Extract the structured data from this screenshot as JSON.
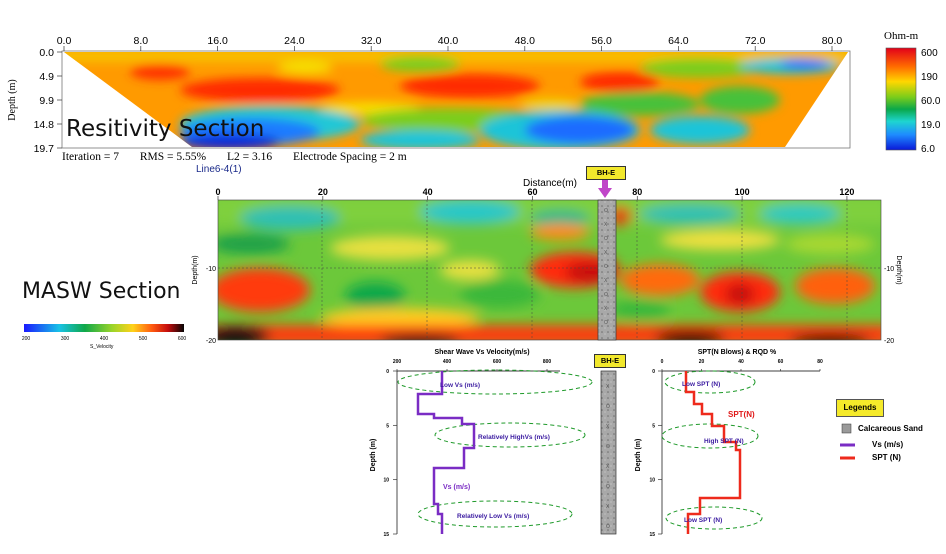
{
  "resistivity": {
    "section_label": "Resitivity Section",
    "x_ticks": [
      "0.0",
      "8.0",
      "16.0",
      "24.0",
      "32.0",
      "40.0",
      "48.0",
      "56.0",
      "64.0",
      "72.0",
      "80.0"
    ],
    "y_ticks": [
      "0.0",
      "4.9",
      "9.9",
      "14.8",
      "19.7"
    ],
    "y_label": "Depth (m)",
    "iteration": "Iteration = 7",
    "rms": "RMS = 5.55%",
    "l2": "L2 = 3.16",
    "electrode": "Electrode Spacing = 2 m",
    "colorbar_title": "Ohm-m",
    "colorbar_ticks": [
      "600",
      "190",
      "60.0",
      "19.0",
      "6.0"
    ],
    "line_label": "Line6-4(1)"
  },
  "masw": {
    "section_label": "MASW Section",
    "x_label": "Distance(m)",
    "x_ticks": [
      "0",
      "20",
      "40",
      "60",
      "80",
      "100",
      "120"
    ],
    "y_label_left": "Depth(m)",
    "y_label_right": "Depth(m)",
    "y_ticks_left": [
      "-10",
      "-20"
    ],
    "y_ticks_right": [
      "-10",
      "-20"
    ],
    "borehole_label": "BH-E",
    "colorbar_ticks": [
      "200",
      "300",
      "400",
      "500",
      "600"
    ],
    "colorbar_label": "S_Velocity"
  },
  "vs_panel": {
    "title": "Shear Wave Vs Velocity(m/s)",
    "x_ticks": [
      "200",
      "400",
      "600",
      "800"
    ],
    "y_label": "Depth (m)",
    "y_ticks": [
      "0",
      "5",
      "10",
      "15"
    ],
    "ann_low": "Low Vs (m/s)",
    "ann_high": "Relatively  HighVs (m/s)",
    "ann_vs": "Vs (m/s)",
    "ann_rel_low": "Relatively  Low Vs (m/s)"
  },
  "bh_panel": {
    "label": "BH-E"
  },
  "spt_panel": {
    "title": "SPT(N Blows) & RQD %",
    "x_ticks": [
      "0",
      "20",
      "40",
      "60",
      "80"
    ],
    "y_label": "Depth (m)",
    "y_ticks": [
      "0",
      "5",
      "10",
      "15"
    ],
    "ann_low": "Low SPT (N)",
    "ann_spt": "SPT(N)",
    "ann_high": "High SPT (N)",
    "ann_low2": "Low SPT (N)"
  },
  "legend": {
    "title": "Legends",
    "items": [
      {
        "label": "Calcareous Sand",
        "color": "#9a9a9a"
      },
      {
        "label": "Vs (m/s)",
        "color": "#7a2cc4"
      },
      {
        "label": "SPT (N)",
        "color": "#ee2a1c"
      }
    ]
  }
}
